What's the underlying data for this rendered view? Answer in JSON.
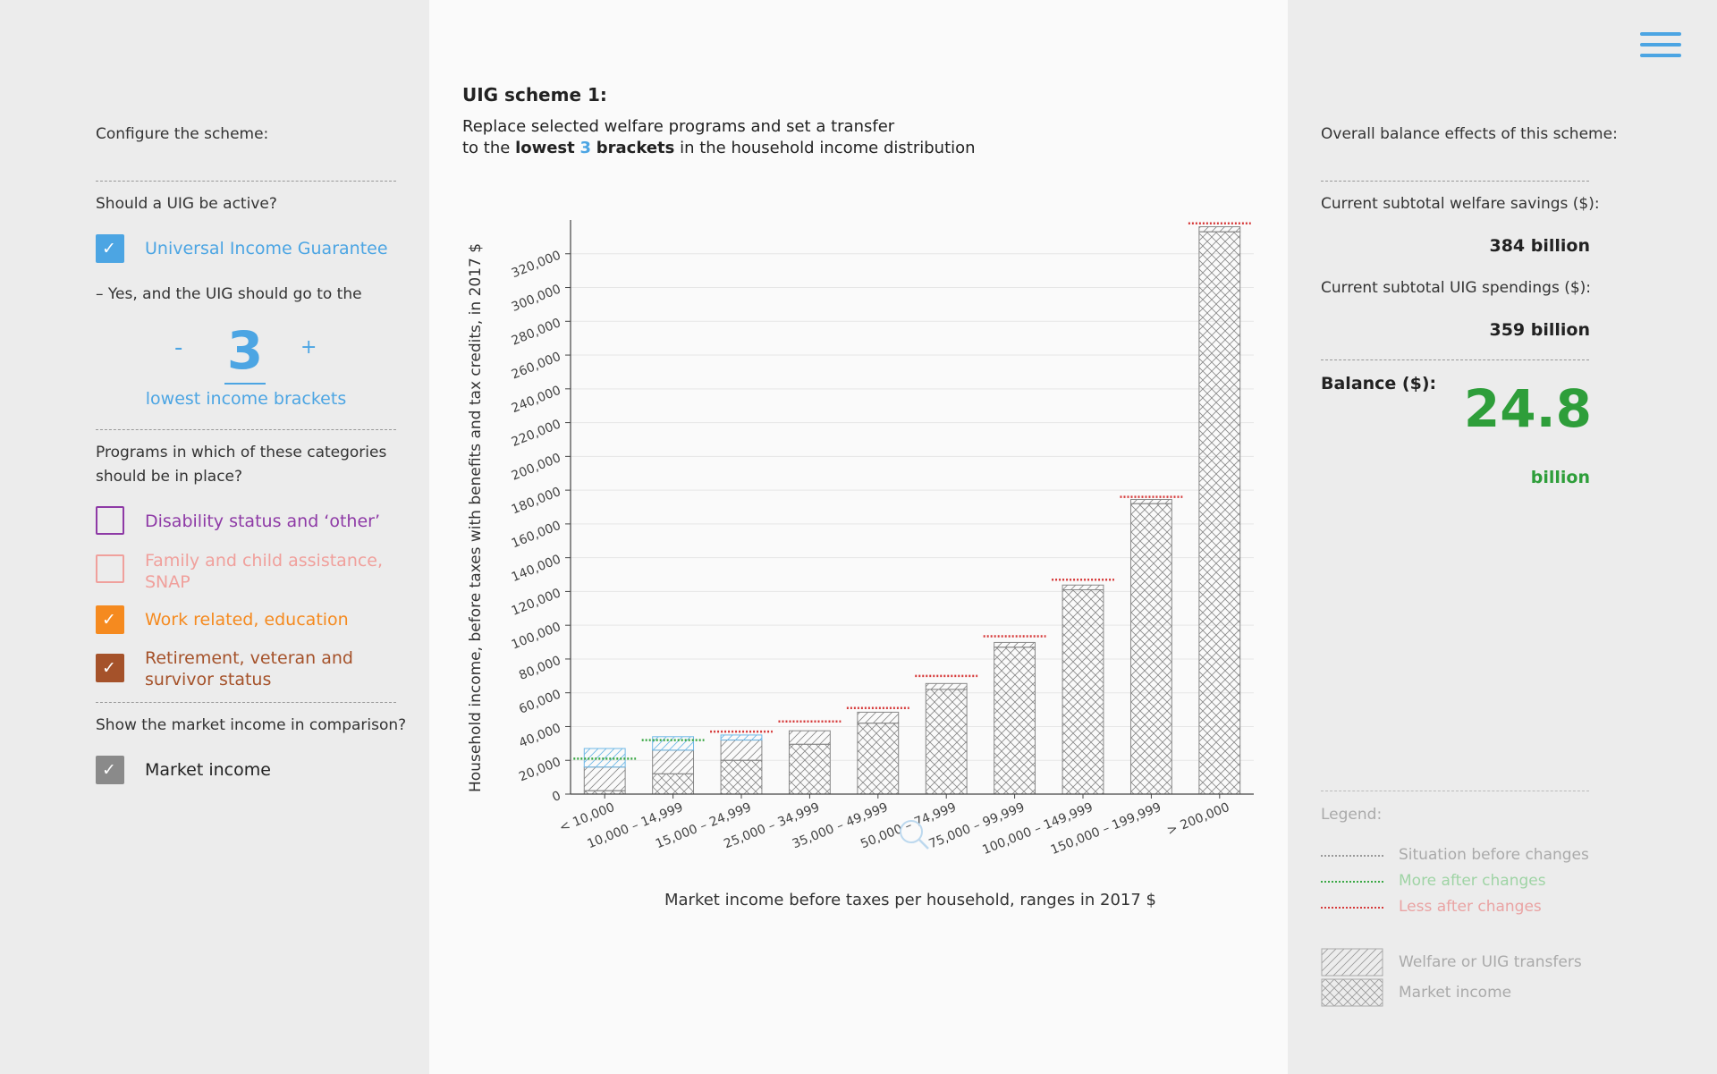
{
  "left_panel": {
    "configure_label": "Configure the scheme:",
    "uig_question": "Should a UIG be active?",
    "uig_checkbox_label": "Universal Income Guarantee",
    "uig_yes_text": "– Yes, and the UIG should go to the",
    "stepper": {
      "minus": "-",
      "value": "3",
      "plus": "+",
      "caption": "lowest income brackets"
    },
    "programs_question_line1": "Programs in which of these categories",
    "programs_question_line2": "should be in place?",
    "programs": [
      {
        "label_line1": "Disability status and ‘other’",
        "label_line2": "",
        "checked": false,
        "color": "#8e3aa6"
      },
      {
        "label_line1": "Family and child assistance,",
        "label_line2": "SNAP",
        "checked": false,
        "color": "#f0a09c"
      },
      {
        "label_line1": "Work related, education",
        "label_line2": "",
        "checked": true,
        "color": "#f58a1f"
      },
      {
        "label_line1": "Retirement, veteran and",
        "label_line2": "survivor status",
        "checked": true,
        "color": "#a5522a"
      }
    ],
    "market_question": "Show the market income in comparison?",
    "market_checkbox_label": "Market income",
    "check_mark": "✓"
  },
  "center_panel": {
    "title": "UIG scheme 1:",
    "subtitle_line1": "Replace selected welfare programs and set a transfer",
    "subtitle_prefix": "to the ",
    "subtitle_bold1": "lowest",
    "subtitle_number": "3",
    "subtitle_bold2": "brackets",
    "subtitle_suffix": " in the household income distribution"
  },
  "chart_data": {
    "type": "bar",
    "ylabel": "Household income, before taxes with benefits and tax credits, in 2017 $",
    "xlabel": "Market income before taxes per household, ranges in 2017 $",
    "ylim": [
      0,
      340000
    ],
    "yticks": [
      "0",
      "20,000",
      "40,000",
      "60,000",
      "80,000",
      "100,000",
      "120,000",
      "140,000",
      "160,000",
      "180,000",
      "200,000",
      "220,000",
      "240,000",
      "260,000",
      "280,000",
      "300,000",
      "320,000"
    ],
    "categories": [
      "< 10,000",
      "10,000 – 14,999",
      "15,000 – 24,999",
      "25,000 – 34,999",
      "35,000 – 49,999",
      "50,000 – 74,999",
      "75,000 – 99,999",
      "100,000 – 149,999",
      "150,000 – 199,999",
      "> 200,000"
    ],
    "series": [
      {
        "name": "Market income",
        "values": [
          2000,
          12000,
          20000,
          29500,
          42000,
          62000,
          87000,
          121000,
          172000,
          333000
        ]
      },
      {
        "name": "Welfare or UIG transfers",
        "values": [
          14000,
          14000,
          12000,
          8000,
          6500,
          3500,
          2800,
          2800,
          2500,
          3000
        ]
      },
      {
        "name": "UIG transfer",
        "values": [
          11000,
          8000,
          3000,
          0,
          0,
          0,
          0,
          0,
          0,
          0
        ]
      }
    ],
    "before_levels": [
      21000,
      32000,
      37000,
      43000,
      51000,
      70000,
      93500,
      127000,
      176000,
      338000
    ],
    "before_change": [
      "more",
      "more",
      "less",
      "less",
      "less",
      "less",
      "less",
      "less",
      "less",
      "less"
    ]
  },
  "right_panel": {
    "balance_header": "Overall balance effects of this scheme:",
    "welfare_savings_label": "Current subtotal welfare savings ($):",
    "welfare_savings_value": "384 billion",
    "uig_spendings_label": "Current subtotal UIG spendings ($):",
    "uig_spendings_value": "359 billion",
    "balance_label": "Balance ($):",
    "balance_value": "24.8",
    "balance_unit": "billion",
    "legend_title": "Legend:",
    "legend_before": "Situation before changes",
    "legend_more": "More after changes",
    "legend_less": "Less after changes",
    "legend_welfare": "Welfare or UIG transfers",
    "legend_market": "Market income"
  },
  "colors": {
    "accent_blue": "#4ca5e3",
    "balance_green": "#2e9e3a",
    "more_green": "#3aa845",
    "less_red": "#d63a3a"
  }
}
